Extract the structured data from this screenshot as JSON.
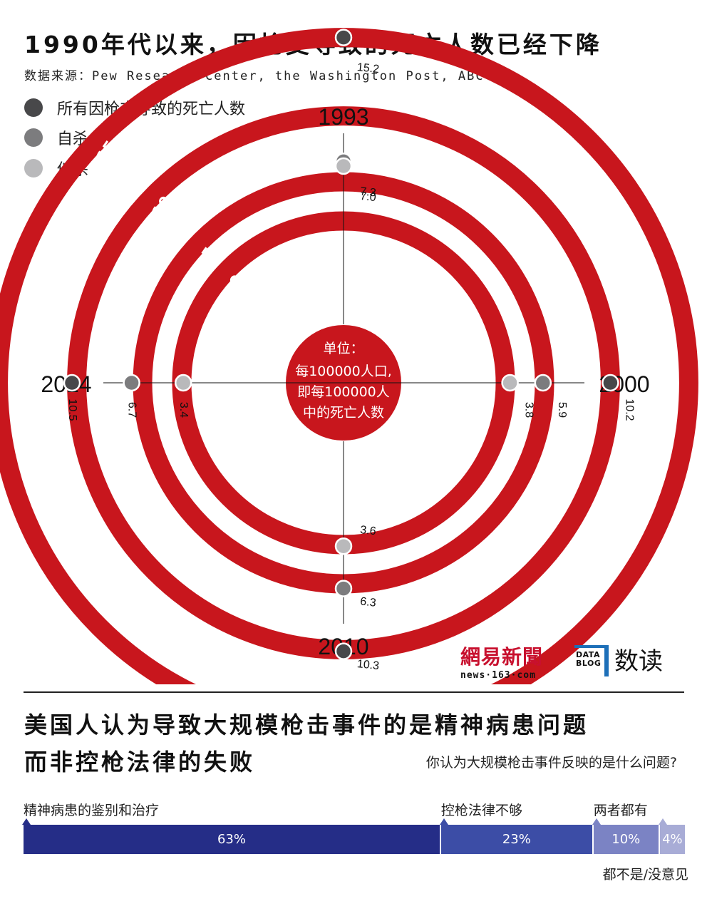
{
  "title": "1990年代以来，因枪支导致的死亡人数已经下降",
  "source": "数据来源：Pew Research Center, the Washington Post, ABC",
  "legend": [
    {
      "label": "所有因枪支导致的死亡人数",
      "color": "#48484a"
    },
    {
      "label": "自杀",
      "color": "#7c7c7e"
    },
    {
      "label": "他杀",
      "color": "#b9b9bb"
    }
  ],
  "center_text": [
    "单位：",
    "每100000人口,",
    "即每100000人",
    "中的死亡人数"
  ],
  "colors": {
    "ring": "#c8161d",
    "all": "#48484a",
    "suicide": "#7c7c7e",
    "homicide": "#b9b9bb",
    "bar_dark": "#252d87",
    "bar_mid": "#3c4da6",
    "bar_light": "#7b83c4",
    "bar_lighter": "#a8acd6"
  },
  "chart_data": [
    {
      "type": "radial-scatter",
      "title": "1990年代以来，因枪支导致的死亡人数已经下降",
      "years": [
        "1993",
        "2000",
        "2010",
        "2014"
      ],
      "ring_scale_labels": [
        "15",
        "10",
        "5",
        "0"
      ],
      "rlim": [
        0,
        15
      ],
      "series": [
        {
          "name": "所有因枪支导致的死亡人数",
          "values": [
            15.2,
            10.2,
            10.3,
            10.5
          ]
        },
        {
          "name": "自杀",
          "values": [
            7.3,
            5.9,
            6.3,
            6.7
          ]
        },
        {
          "name": "他杀",
          "values": [
            7.0,
            3.8,
            3.6,
            3.4
          ]
        }
      ],
      "value_labels": {
        "1993": [
          "15.2",
          "7.3",
          "7.0"
        ],
        "2000": [
          "10.2",
          "5.9",
          "3.8"
        ],
        "2010": [
          "10.3",
          "6.3",
          "3.6"
        ],
        "2014": [
          "10.5",
          "6.7",
          "3.4"
        ]
      }
    },
    {
      "type": "bar",
      "title": "美国人认为导致大规模枪击事件的是精神病患问题而非控枪法律的失败",
      "title_lines": [
        "美国人认为导致大规模枪击事件的是精神病患问题",
        "而非控枪法律的失败"
      ],
      "question": "你认为大规模枪击事件反映的是什么问题?",
      "categories": [
        "精神病患的鉴别和治疗",
        "控枪法律不够",
        "两者都有",
        "都不是/没意见"
      ],
      "values": [
        63,
        23,
        10,
        4
      ],
      "value_labels": [
        "63%",
        "23%",
        "10%",
        "4%"
      ]
    }
  ],
  "logos": {
    "netease": "網易新聞",
    "netease_url": "news·163·com",
    "datablog_1": "DATA",
    "datablog_2": "BLOG",
    "datablog_cn": "数读"
  }
}
